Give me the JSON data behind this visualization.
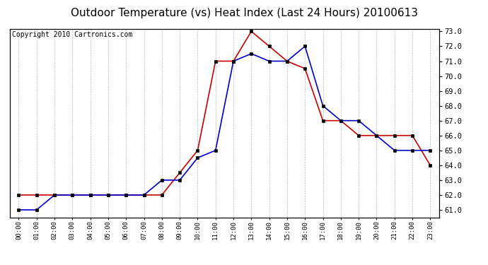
{
  "title": "Outdoor Temperature (vs) Heat Index (Last 24 Hours) 20100613",
  "copyright": "Copyright 2010 Cartronics.com",
  "hours": [
    "00:00",
    "01:00",
    "02:00",
    "03:00",
    "04:00",
    "05:00",
    "06:00",
    "07:00",
    "08:00",
    "09:00",
    "10:00",
    "11:00",
    "12:00",
    "13:00",
    "14:00",
    "15:00",
    "16:00",
    "17:00",
    "18:00",
    "19:00",
    "20:00",
    "21:00",
    "22:00",
    "23:00"
  ],
  "temp_blue": [
    61.0,
    61.0,
    62.0,
    62.0,
    62.0,
    62.0,
    62.0,
    62.0,
    63.0,
    63.0,
    64.5,
    65.0,
    71.0,
    71.5,
    71.0,
    71.0,
    72.0,
    68.0,
    67.0,
    67.0,
    66.0,
    65.0,
    65.0,
    65.0
  ],
  "heat_red": [
    62.0,
    62.0,
    62.0,
    62.0,
    62.0,
    62.0,
    62.0,
    62.0,
    62.0,
    63.5,
    65.0,
    71.0,
    71.0,
    73.0,
    72.0,
    71.0,
    70.5,
    67.0,
    67.0,
    66.0,
    66.0,
    66.0,
    66.0,
    64.0
  ],
  "ylim_min": 61.0,
  "ylim_max": 73.0,
  "yticks": [
    61.0,
    62.0,
    63.0,
    64.0,
    65.0,
    66.0,
    67.0,
    68.0,
    69.0,
    70.0,
    71.0,
    72.0,
    73.0
  ],
  "line_color_blue": "#0000cc",
  "line_color_red": "#cc0000",
  "marker": "s",
  "marker_color": "#000000",
  "marker_size": 3,
  "bg_color": "#ffffff",
  "grid_color": "#bbbbbb",
  "title_fontsize": 11,
  "copyright_fontsize": 7,
  "figwidth": 6.9,
  "figheight": 3.75,
  "dpi": 100
}
